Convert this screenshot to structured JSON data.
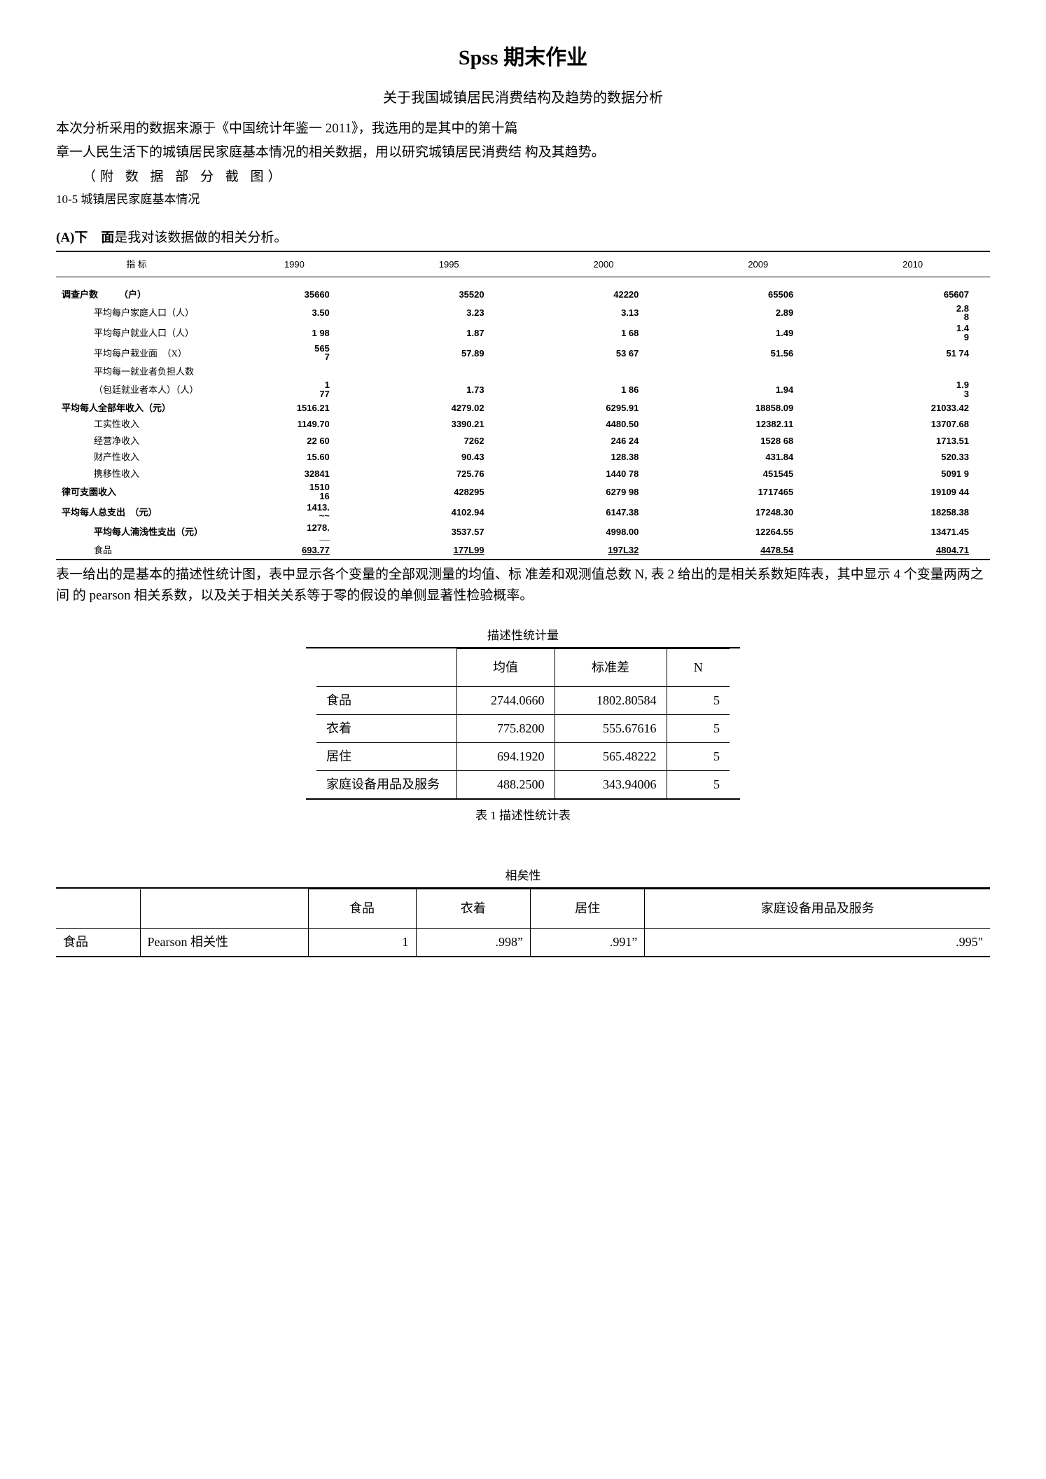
{
  "title": "Spss 期末作业",
  "subtitle": "关于我国城镇居民消费结构及趋势的数据分析",
  "para1": "本次分析采用的数据来源于《中国统计年鉴一 2011》，我选用的是其中的第十篇",
  "para2": "章一人民生活下的城镇居民家庭基本情况的相关数据，用以研究城镇居民消费结 构及其趋势。",
  "appx": "（附 数 据 部 分 截 图）",
  "tag105": "10-5 城镇居民家庭基本情况",
  "sectionA_pre": "(A)",
  "sectionA_mid": "下　面",
  "sectionA_txt": "是我对该数据做的相关分析。",
  "t1": {
    "header": [
      "指 标",
      "1990",
      "1995",
      "2000",
      "2009",
      "2010"
    ],
    "rows": [
      {
        "lab": "调查户数",
        "unit": "（户）",
        "vals": [
          "35660",
          "35520",
          "42220",
          "65506",
          "65607"
        ],
        "bold": true
      },
      {
        "lab": "平均每户家庭人口（人）",
        "vals": [
          "3.50",
          "3.23",
          "3.13",
          "2.89",
          "2.8\n8"
        ],
        "indent": true
      },
      {
        "lab": "平均每户就业人口（人）",
        "vals": [
          "1 98",
          "1.87",
          "1 68",
          "1.49",
          "1.4\n9"
        ],
        "indent": true
      },
      {
        "lab": "平均每户栽业面　（X）",
        "vals": [
          "565\n7",
          "57.89",
          "53 67",
          "51.56",
          "51 74"
        ],
        "indent": true
      },
      {
        "lab": "平均每一就业者负担人数",
        "vals": [
          "",
          "",
          "",
          "",
          ""
        ],
        "indent": true
      },
      {
        "lab": "（包廷就业者本人）（人）",
        "vals": [
          "1\n77",
          "1.73",
          "1 86",
          "1.94",
          "1.9\n3"
        ],
        "indent": true
      },
      {
        "lab": "平均每人全部年收入（元）",
        "vals": [
          "1516.21",
          "4279.02",
          "6295.91",
          "18858.09",
          "21033.42"
        ],
        "bold": true
      },
      {
        "lab": "工实性收入",
        "vals": [
          "1149.70",
          "3390.21",
          "4480.50",
          "12382.11",
          "13707.68"
        ],
        "indent": true
      },
      {
        "lab": "经营净收入",
        "vals": [
          "22 60",
          "7262",
          "246 24",
          "1528 68",
          "1713.51"
        ],
        "indent": true
      },
      {
        "lab": "财产性收入",
        "vals": [
          "15.60",
          "90.43",
          "128.38",
          "431.84",
          "520.33"
        ],
        "indent": true
      },
      {
        "lab": "携移性收入",
        "vals": [
          "32841",
          "725.76",
          "1440 78",
          "451545",
          "5091 9"
        ],
        "indent": true
      },
      {
        "lab": "律可支圉收入",
        "vals": [
          "1510\n16",
          "428295",
          "6279 98",
          "1717465",
          "19109 44"
        ],
        "bold": true
      },
      {
        "lab": "平均每人总支出　（元）",
        "vals": [
          "1413.\n~~",
          "4102.94",
          "6147.38",
          "17248.30",
          "18258.38"
        ],
        "bold": true
      },
      {
        "lab": "平均每人湳浅性支出（元）",
        "vals": [
          "1278.\n__",
          "3537.57",
          "4998.00",
          "12264.55",
          "13471.45"
        ],
        "bold": true,
        "indent": true
      },
      {
        "lab": "食品",
        "vals": [
          "693.77",
          "177L99",
          "197L32",
          "4478.54",
          "4804.71"
        ],
        "indent": true,
        "underline": true,
        "last": true
      }
    ]
  },
  "para3": "表一给出的是基本的描述性统计图，表中显示各个变量的全部观测量的均值、标 准差和观测值总数 N, 表 2 给出的是相关系数矩阵表，其中显示 4 个变量两两之间 的 pearson 相关系数，以及关于相关关系等于零的假设的单侧显著性检验概率。",
  "t2": {
    "title": "描述性统计量",
    "header": [
      "",
      "均值",
      "标准差",
      "N"
    ],
    "rows": [
      [
        "食品",
        "2744.0660",
        "1802.80584",
        "5"
      ],
      [
        "衣着",
        "775.8200",
        "555.67616",
        "5"
      ],
      [
        "居住",
        "694.1920",
        "565.48222",
        "5"
      ],
      [
        "家庭设备用品及服务",
        "488.2500",
        "343.94006",
        "5"
      ]
    ],
    "caption": "表 1 描述性统计表"
  },
  "t3": {
    "title": "相矣性",
    "header": [
      "",
      "",
      "食品",
      "衣着",
      "居住",
      "家庭设备用品及服务"
    ],
    "rows": [
      [
        "食品",
        "Pearson 相关性",
        "1",
        ".998”",
        ".991”",
        ".995\""
      ]
    ]
  }
}
